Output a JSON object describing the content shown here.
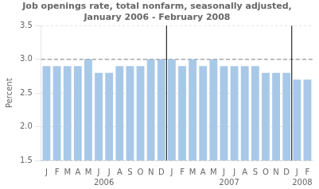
{
  "chart_data": {
    "type": "bar",
    "title": "Job openings rate, total nonfarm, seasonally adjusted,\nJanuary 2006 - February 2008",
    "ylabel": "Percent",
    "categories": [
      "J",
      "F",
      "M",
      "A",
      "M",
      "J",
      "J",
      "A",
      "S",
      "O",
      "N",
      "D",
      "J",
      "F",
      "M",
      "A",
      "M",
      "J",
      "J",
      "A",
      "S",
      "O",
      "N",
      "D",
      "J",
      "F"
    ],
    "values": [
      2.9,
      2.9,
      2.9,
      2.9,
      3.0,
      2.8,
      2.8,
      2.9,
      2.9,
      2.9,
      3.0,
      3.0,
      3.0,
      2.9,
      3.0,
      2.9,
      3.0,
      2.9,
      2.9,
      2.9,
      2.9,
      2.8,
      2.8,
      2.8,
      2.7,
      2.7
    ],
    "color": "#a8c8e8",
    "ylim": [
      1.5,
      3.5
    ],
    "yticks": [
      1.5,
      {
        "value": 2,
        "label": "2.0"
      },
      2.5,
      {
        "value": 3,
        "label": "3.0"
      },
      3.5
    ],
    "grid": true,
    "reference_line": 3.0,
    "annotations": [
      "2006",
      "2007",
      "2008"
    ]
  }
}
